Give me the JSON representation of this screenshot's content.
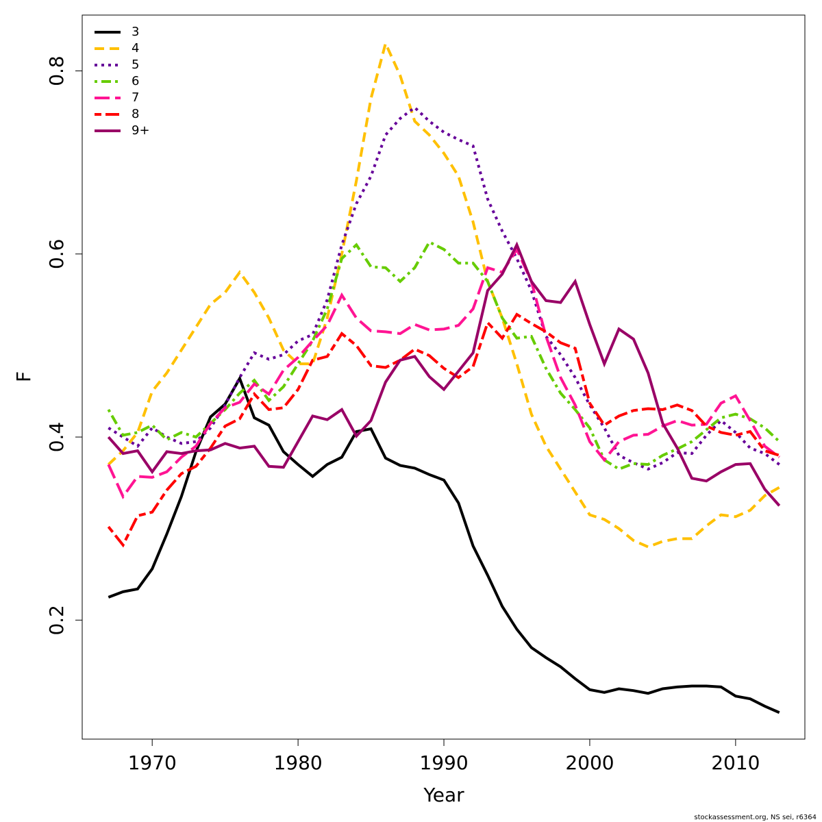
{
  "chart_data": {
    "type": "line",
    "xlabel": "Year",
    "ylabel": "F",
    "source": "stockassessment.org, NS sei, r6364",
    "x": [
      1967,
      1968,
      1969,
      1970,
      1971,
      1972,
      1973,
      1974,
      1975,
      1976,
      1977,
      1978,
      1979,
      1980,
      1981,
      1982,
      1983,
      1984,
      1985,
      1986,
      1987,
      1988,
      1989,
      1990,
      1991,
      1992,
      1993,
      1994,
      1995,
      1996,
      1997,
      1998,
      1999,
      2000,
      2001,
      2002,
      2003,
      2004,
      2005,
      2006,
      2007,
      2008,
      2009,
      2010,
      2011,
      2012,
      2013
    ],
    "xlim": [
      1965.2,
      2014.75
    ],
    "xticks": [
      1970,
      1980,
      1990,
      2000,
      2010
    ],
    "ylim": [
      0.07,
      0.861
    ],
    "yticks": [
      0.2,
      0.4,
      0.6,
      0.8
    ],
    "legend": "top-left",
    "series": [
      {
        "name": "3",
        "color": "#000000",
        "dash": "solid",
        "values": [
          0.225,
          0.231,
          0.234,
          0.256,
          0.294,
          0.335,
          0.384,
          0.422,
          0.436,
          0.464,
          0.421,
          0.413,
          0.384,
          0.37,
          0.357,
          0.37,
          0.378,
          0.406,
          0.409,
          0.377,
          0.369,
          0.366,
          0.359,
          0.353,
          0.328,
          0.281,
          0.249,
          0.215,
          0.19,
          0.17,
          0.159,
          0.149,
          0.136,
          0.124,
          0.121,
          0.125,
          0.123,
          0.12,
          0.125,
          0.127,
          0.128,
          0.128,
          0.127,
          0.117,
          0.114,
          0.106,
          0.099
        ]
      },
      {
        "name": "4",
        "color": "#ffc000",
        "dash": "dashed",
        "values": [
          0.37,
          0.385,
          0.405,
          0.45,
          0.47,
          0.495,
          0.52,
          0.545,
          0.558,
          0.58,
          0.558,
          0.53,
          0.495,
          0.48,
          0.48,
          0.53,
          0.6,
          0.68,
          0.77,
          0.83,
          0.795,
          0.745,
          0.73,
          0.71,
          0.685,
          0.635,
          0.57,
          0.53,
          0.48,
          0.425,
          0.39,
          0.365,
          0.34,
          0.315,
          0.31,
          0.3,
          0.287,
          0.28,
          0.286,
          0.289,
          0.289,
          0.303,
          0.315,
          0.313,
          0.32,
          0.336,
          0.345
        ]
      },
      {
        "name": "5",
        "color": "#660099",
        "dash": "dotted",
        "values": [
          0.41,
          0.4,
          0.39,
          0.41,
          0.4,
          0.393,
          0.395,
          0.41,
          0.435,
          0.465,
          0.492,
          0.485,
          0.49,
          0.505,
          0.512,
          0.55,
          0.61,
          0.655,
          0.685,
          0.73,
          0.748,
          0.76,
          0.745,
          0.733,
          0.725,
          0.718,
          0.66,
          0.625,
          0.595,
          0.56,
          0.51,
          0.49,
          0.465,
          0.435,
          0.41,
          0.38,
          0.372,
          0.365,
          0.372,
          0.383,
          0.382,
          0.402,
          0.418,
          0.405,
          0.388,
          0.382,
          0.37
        ]
      },
      {
        "name": "6",
        "color": "#66cc00",
        "dash": "dotdash",
        "values": [
          0.43,
          0.402,
          0.405,
          0.413,
          0.397,
          0.405,
          0.4,
          0.415,
          0.43,
          0.448,
          0.462,
          0.44,
          0.455,
          0.48,
          0.505,
          0.54,
          0.595,
          0.61,
          0.586,
          0.585,
          0.57,
          0.585,
          0.613,
          0.605,
          0.59,
          0.59,
          0.57,
          0.53,
          0.508,
          0.51,
          0.475,
          0.448,
          0.43,
          0.41,
          0.375,
          0.365,
          0.371,
          0.37,
          0.38,
          0.387,
          0.395,
          0.408,
          0.421,
          0.425,
          0.42,
          0.41,
          0.395
        ]
      },
      {
        "name": "7",
        "color": "#ff1493",
        "dash": "longdash",
        "values": [
          0.37,
          0.335,
          0.357,
          0.356,
          0.362,
          0.378,
          0.39,
          0.415,
          0.432,
          0.438,
          0.458,
          0.447,
          0.473,
          0.487,
          0.505,
          0.522,
          0.555,
          0.53,
          0.516,
          0.515,
          0.513,
          0.523,
          0.517,
          0.518,
          0.522,
          0.54,
          0.585,
          0.58,
          0.605,
          0.57,
          0.51,
          0.465,
          0.435,
          0.395,
          0.375,
          0.395,
          0.402,
          0.403,
          0.412,
          0.418,
          0.413,
          0.414,
          0.437,
          0.445,
          0.418,
          0.39,
          0.378
        ]
      },
      {
        "name": "8",
        "color": "#ff0000",
        "dash": "twodash",
        "values": [
          0.302,
          0.282,
          0.314,
          0.318,
          0.342,
          0.36,
          0.368,
          0.388,
          0.412,
          0.42,
          0.447,
          0.43,
          0.432,
          0.452,
          0.484,
          0.488,
          0.513,
          0.5,
          0.478,
          0.476,
          0.484,
          0.496,
          0.489,
          0.475,
          0.465,
          0.477,
          0.525,
          0.508,
          0.534,
          0.524,
          0.515,
          0.503,
          0.497,
          0.437,
          0.413,
          0.423,
          0.429,
          0.431,
          0.43,
          0.435,
          0.429,
          0.412,
          0.405,
          0.402,
          0.406,
          0.385,
          0.38
        ]
      },
      {
        "name": "9+",
        "color": "#990066",
        "dash": "solid",
        "values": [
          0.4,
          0.382,
          0.385,
          0.362,
          0.384,
          0.382,
          0.385,
          0.386,
          0.393,
          0.388,
          0.39,
          0.368,
          0.367,
          0.395,
          0.423,
          0.419,
          0.43,
          0.401,
          0.418,
          0.46,
          0.484,
          0.488,
          0.466,
          0.452,
          0.472,
          0.492,
          0.56,
          0.578,
          0.61,
          0.57,
          0.549,
          0.547,
          0.57,
          0.523,
          0.48,
          0.518,
          0.507,
          0.47,
          0.415,
          0.388,
          0.355,
          0.352,
          0.362,
          0.37,
          0.371,
          0.343,
          0.325
        ]
      }
    ]
  }
}
